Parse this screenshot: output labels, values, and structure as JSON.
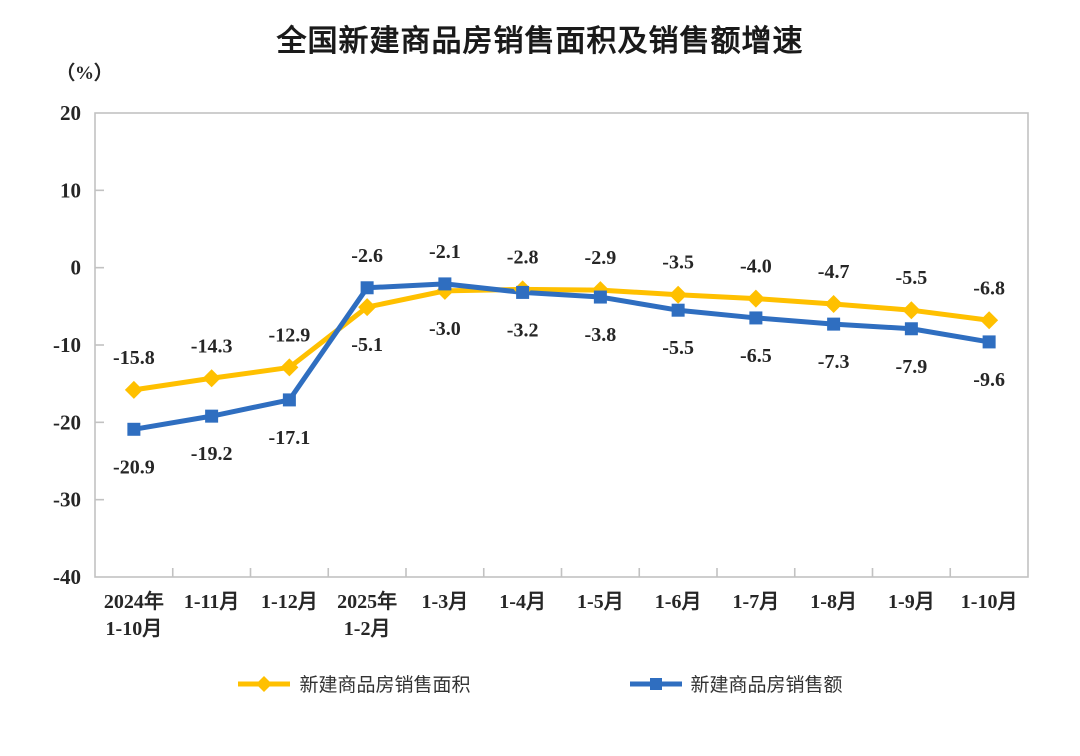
{
  "chart": {
    "title": "全国新建商品房销售面积及销售额增速",
    "unit_label": "（%）"
  },
  "chart_data": {
    "type": "line",
    "title": "全国新建商品房销售面积及销售额增速",
    "ylabel": "（%）",
    "xlabel": "",
    "categories": [
      "2024年\n1-10月",
      "1-11月",
      "1-12月",
      "2025年\n1-2月",
      "1-3月",
      "1-4月",
      "1-5月",
      "1-6月",
      "1-7月",
      "1-8月",
      "1-9月",
      "1-10月"
    ],
    "series": [
      {
        "name": "新建商品房销售面积",
        "color": "#FFC000",
        "marker": "diamond",
        "values": [
          -15.8,
          -14.3,
          -12.9,
          -5.1,
          -3.0,
          -2.8,
          -2.9,
          -3.5,
          -4.0,
          -4.7,
          -5.5,
          -6.8
        ]
      },
      {
        "name": "新建商品房销售额",
        "color": "#2F6EC0",
        "marker": "square",
        "values": [
          -20.9,
          -19.2,
          -17.1,
          -2.6,
          -2.1,
          -3.2,
          -3.8,
          -5.5,
          -6.5,
          -7.3,
          -7.9,
          -9.6
        ]
      }
    ],
    "ylim": [
      -40,
      20
    ],
    "y_ticks": [
      20,
      10,
      0,
      -10,
      -20,
      -30,
      -40
    ],
    "grid": false,
    "data_labels": true,
    "legend_position": "bottom"
  }
}
